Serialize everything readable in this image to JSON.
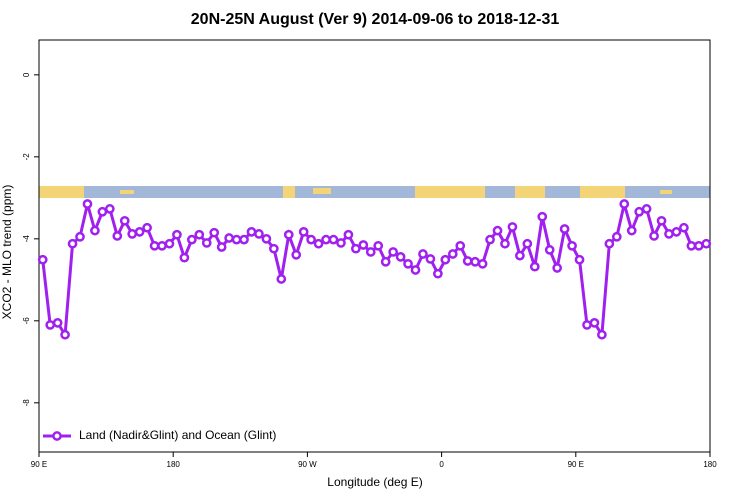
{
  "chart_data": {
    "type": "line",
    "title": "20N-25N August (Ver 9)   2014-09-06 to 2018-12-31",
    "x_label": "Longitude (deg E)",
    "y_label": "XCO2 - MLO trend (ppm)",
    "x": [
      92.5,
      97.5,
      102.5,
      107.5,
      112.5,
      117.5,
      122.5,
      127.5,
      132.5,
      137.5,
      142.5,
      147.5,
      152.5,
      157.5,
      162.5,
      167.5,
      172.5,
      177.5,
      182.5,
      187.5,
      192.5,
      197.5,
      202.5,
      207.5,
      212.5,
      217.5,
      222.5,
      227.5,
      232.5,
      237.5,
      242.5,
      247.5,
      252.5,
      257.5,
      262.5,
      267.5,
      272.5,
      277.5,
      282.5,
      287.5,
      292.5,
      297.5,
      302.5,
      307.5,
      312.5,
      317.5,
      322.5,
      327.5,
      332.5,
      337.5,
      342.5,
      347.5,
      352.5,
      357.5,
      362.5,
      367.5,
      372.5,
      377.5,
      382.5,
      387.5,
      392.5,
      397.5,
      402.5,
      407.5,
      412.5,
      417.5,
      422.5,
      427.5,
      432.5,
      437.5,
      442.5,
      447.5,
      452.5,
      457.5,
      462.5,
      467.5,
      472.5,
      477.5,
      482.5,
      487.5,
      492.5,
      497.5,
      502.5,
      507.5,
      512.5,
      517.5,
      522.5,
      527.5,
      532.5,
      537.5
    ],
    "series": [
      {
        "name": "Land (Nadir&Glint) and Ocean (Glint)",
        "color": "#a020f0",
        "values": [
          -4.51,
          -6.1,
          -6.05,
          -6.34,
          -4.12,
          -3.95,
          -3.15,
          -3.8,
          -3.34,
          -3.27,
          -3.93,
          -3.56,
          -3.88,
          -3.83,
          -3.73,
          -4.17,
          -4.17,
          -4.12,
          -3.9,
          -4.46,
          -4.02,
          -3.9,
          -4.1,
          -3.85,
          -4.2,
          -3.98,
          -4.02,
          -4.02,
          -3.83,
          -3.88,
          -4.0,
          -4.24,
          -4.98,
          -3.9,
          -4.39,
          -3.83,
          -4.02,
          -4.12,
          -4.02,
          -4.02,
          -4.1,
          -3.9,
          -4.24,
          -4.15,
          -4.32,
          -4.17,
          -4.56,
          -4.32,
          -4.44,
          -4.61,
          -4.76,
          -4.37,
          -4.49,
          -4.85,
          -4.51,
          -4.37,
          -4.17,
          -4.54,
          -4.56,
          -4.61,
          -4.02,
          -3.8,
          -4.12,
          -3.71,
          -4.41,
          -4.12,
          -4.68,
          -3.46,
          -4.27,
          -4.71,
          -3.76,
          -4.17,
          -4.51,
          -6.1,
          -6.05,
          -6.34,
          -4.12,
          -3.95,
          -3.15,
          -3.8,
          -3.34,
          -3.27,
          -3.93,
          -3.56,
          -3.88,
          -3.83,
          -3.73,
          -4.17,
          -4.17,
          -4.12
        ]
      }
    ],
    "xlim": [
      90,
      540
    ],
    "xticks": [
      {
        "value": 90,
        "label": "90 E"
      },
      180,
      {
        "value": 270,
        "label": "90 W"
      },
      {
        "value": 360,
        "label": "0"
      },
      {
        "value": 450,
        "label": "90 E"
      },
      {
        "value": 540,
        "label": "180"
      }
    ],
    "ylim": [
      -9.2,
      0.85
    ],
    "yticks": [
      0,
      -2,
      -4,
      -6,
      -8
    ],
    "legend": "bottom-left"
  }
}
